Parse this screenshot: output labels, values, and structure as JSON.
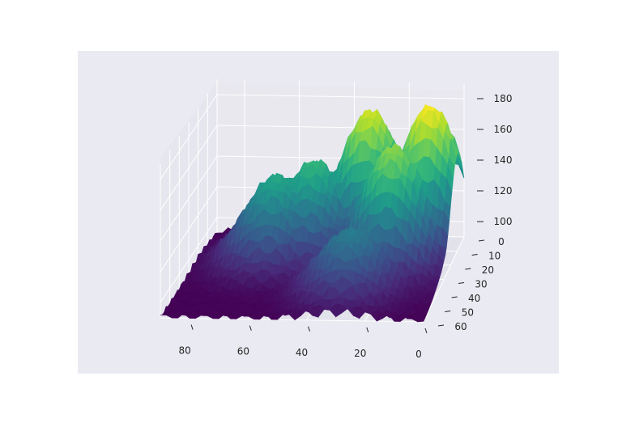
{
  "chart_data": {
    "type": "surface3d",
    "colormap": "viridis",
    "style": "seaborn-darkgrid",
    "colors": {
      "figure_bg": "#ffffff",
      "axes_bg": "#eaeaf2",
      "pane_back": "#e8e8ee",
      "pane_side": "#e4e4ec",
      "grid": "#ffffff",
      "tick_text": "#262626"
    },
    "grid": true,
    "x_axis": {
      "range": [
        0,
        90
      ],
      "ticks": [
        0,
        20,
        40,
        60,
        80
      ],
      "tick_labels": [
        "0",
        "20",
        "40",
        "60",
        "80"
      ]
    },
    "y_axis": {
      "range": [
        0,
        60
      ],
      "ticks": [
        0,
        10,
        20,
        30,
        40,
        50,
        60
      ],
      "tick_labels": [
        "0",
        "10",
        "20",
        "30",
        "40",
        "50",
        "60"
      ]
    },
    "z_axis": {
      "range": [
        90,
        190
      ],
      "ticks": [
        100,
        120,
        140,
        160,
        180
      ],
      "tick_labels": [
        "100",
        "120",
        "140",
        "160",
        "180"
      ]
    },
    "surface_z_range": [
      90,
      184
    ],
    "peaks": [
      {
        "x": 10,
        "y": 10,
        "z": 184
      },
      {
        "x": 32,
        "y": 8,
        "z": 178
      },
      {
        "x": 20,
        "y": 22,
        "z": 168
      },
      {
        "x": 50,
        "y": 16,
        "z": 152
      },
      {
        "x": 62,
        "y": 20,
        "z": 146
      },
      {
        "x": 30,
        "y": 40,
        "z": 130
      }
    ]
  }
}
